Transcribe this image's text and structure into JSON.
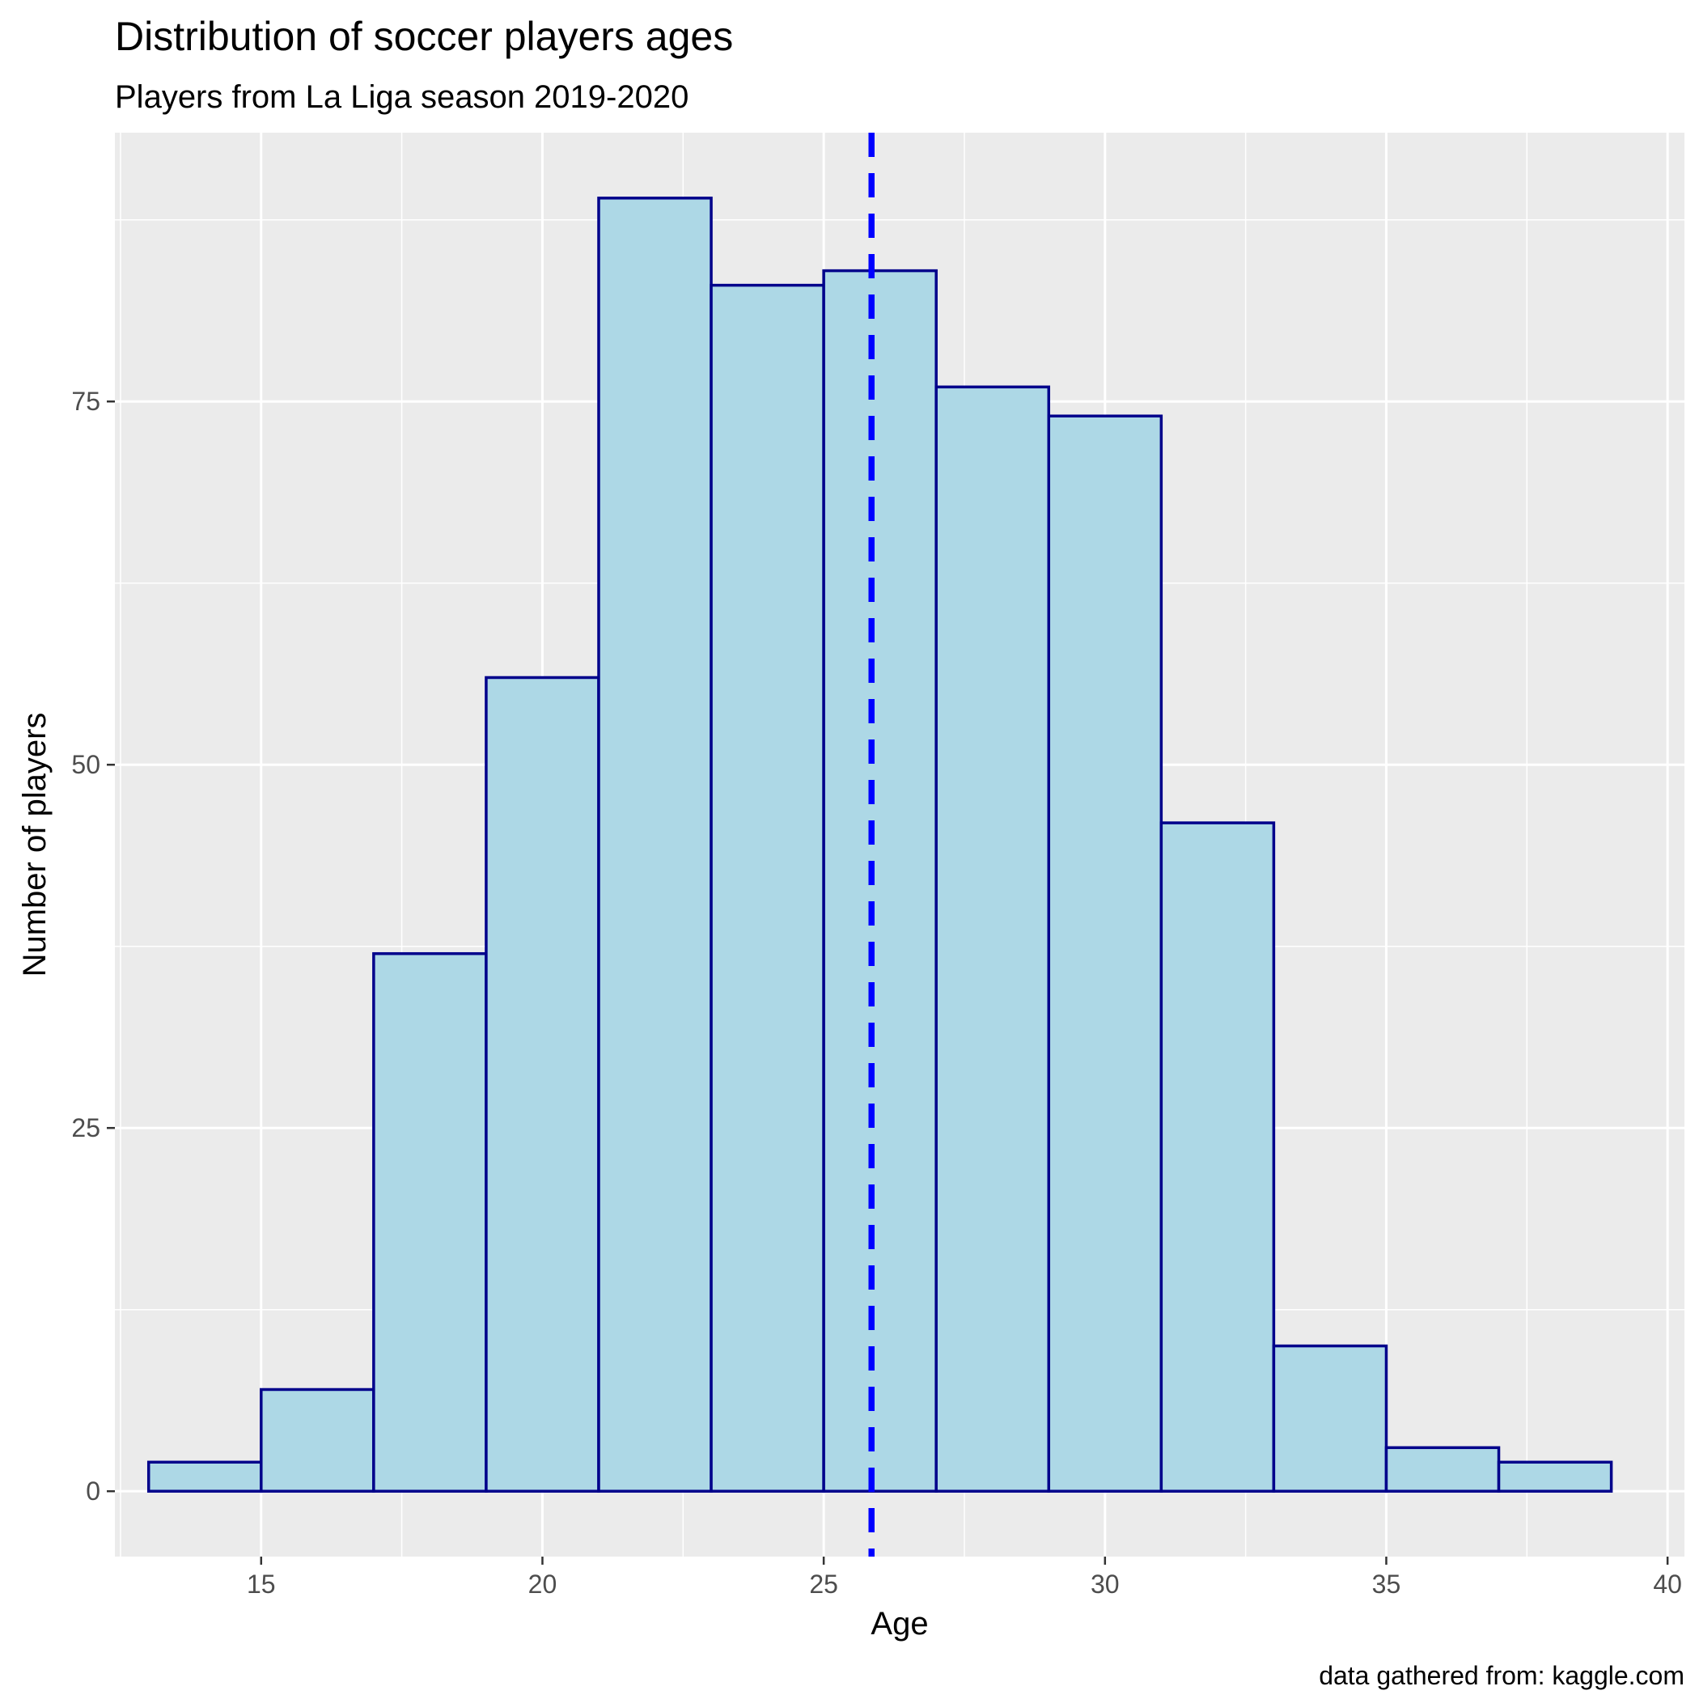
{
  "chart_data": {
    "type": "bar",
    "title": "Distribution of soccer players ages",
    "subtitle": "Players from La Liga season 2019-2020",
    "xlabel": "Age",
    "ylabel": "Number of players",
    "caption": "data gathered from: kaggle.com",
    "bins": [
      {
        "x_start": 13,
        "x_end": 15,
        "count": 2
      },
      {
        "x_start": 15,
        "x_end": 17,
        "count": 7
      },
      {
        "x_start": 17,
        "x_end": 19,
        "count": 37
      },
      {
        "x_start": 19,
        "x_end": 21,
        "count": 56
      },
      {
        "x_start": 21,
        "x_end": 23,
        "count": 89
      },
      {
        "x_start": 23,
        "x_end": 25,
        "count": 83
      },
      {
        "x_start": 25,
        "x_end": 27,
        "count": 84
      },
      {
        "x_start": 27,
        "x_end": 29,
        "count": 76
      },
      {
        "x_start": 29,
        "x_end": 31,
        "count": 74
      },
      {
        "x_start": 31,
        "x_end": 33,
        "count": 46
      },
      {
        "x_start": 33,
        "x_end": 35,
        "count": 10
      },
      {
        "x_start": 35,
        "x_end": 37,
        "count": 3
      },
      {
        "x_start": 37,
        "x_end": 39,
        "count": 2
      }
    ],
    "mean_line": {
      "x": 25.85,
      "style": "dashed",
      "color": "#0000ff"
    },
    "xlim": [
      12.4,
      40.3
    ],
    "ylim": [
      -4.5,
      93.5
    ],
    "x_ticks": [
      15,
      20,
      25,
      30,
      35,
      40
    ],
    "y_ticks": [
      0,
      25,
      50,
      75
    ],
    "grid": true,
    "colors": {
      "bar_fill": "#add8e6",
      "bar_outline": "#00008b",
      "panel_background": "#ebebeb",
      "gridline": "#ffffff"
    }
  }
}
